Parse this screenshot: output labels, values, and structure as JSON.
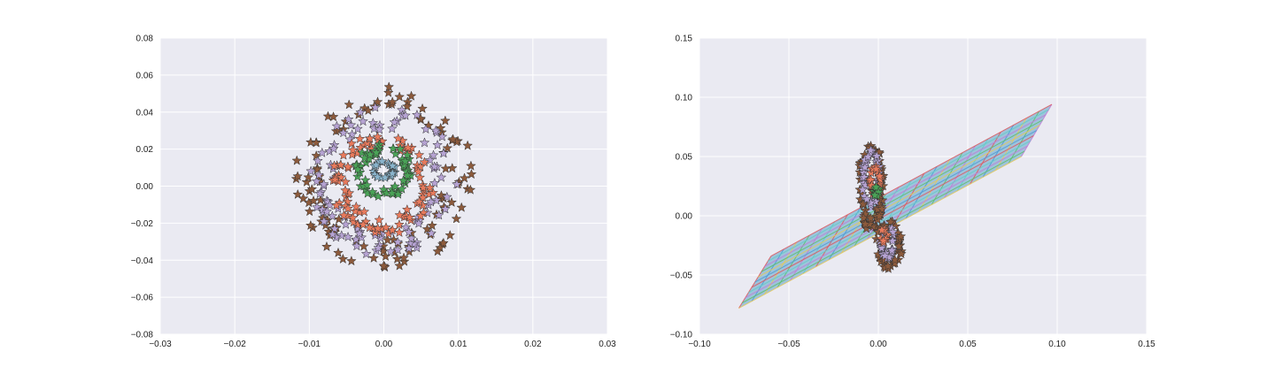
{
  "chart_data": [
    {
      "type": "scatter",
      "title": "",
      "xlabel": "",
      "ylabel": "",
      "xlim": [
        -0.03,
        0.03
      ],
      "ylim": [
        -0.08,
        0.08
      ],
      "x_ticks": [
        "−0.03",
        "−0.02",
        "−0.01",
        "0.00",
        "0.01",
        "0.02",
        "0.03"
      ],
      "y_ticks": [
        "0.08",
        "0.06",
        "0.04",
        "0.02",
        "0.00",
        "−0.02",
        "−0.04",
        "−0.06",
        "−0.08"
      ],
      "grid": true,
      "marker": "star",
      "series": [
        {
          "color": "#8c5a3c",
          "shape": "ellipse",
          "center": [
            0.0,
            0.005
          ],
          "rx": 0.0115,
          "ry": 0.048,
          "tilt_deg": -48,
          "n": 120
        },
        {
          "color": "#b6a3d3",
          "shape": "ellipse",
          "center": [
            0.0,
            0.003
          ],
          "rx": 0.0095,
          "ry": 0.039,
          "tilt_deg": -48,
          "n": 110
        },
        {
          "color": "#e87a5c",
          "shape": "ellipse",
          "center": [
            0.0,
            0.002
          ],
          "rx": 0.0068,
          "ry": 0.027,
          "tilt_deg": -48,
          "n": 100
        },
        {
          "color": "#4aa357",
          "shape": "ellipse",
          "center": [
            0.0,
            0.008
          ],
          "rx": 0.0038,
          "ry": 0.014,
          "tilt_deg": -30,
          "n": 70
        },
        {
          "color": "#8ab4cc",
          "shape": "ellipse",
          "center": [
            0.0,
            0.009
          ],
          "rx": 0.0015,
          "ry": 0.005,
          "tilt_deg": -30,
          "n": 30
        }
      ]
    },
    {
      "type": "scatter",
      "title": "",
      "xlabel": "",
      "ylabel": "",
      "xlim": [
        -0.1,
        0.15
      ],
      "ylim": [
        -0.1,
        0.15
      ],
      "x_ticks": [
        "−0.10",
        "−0.05",
        "0.00",
        "0.05",
        "0.10",
        "0.15"
      ],
      "y_ticks": [
        "0.15",
        "0.10",
        "0.05",
        "0.00",
        "−0.05",
        "−0.10"
      ],
      "grid": true,
      "marker": "star",
      "plane": {
        "corners": [
          [
            -0.078,
            -0.078
          ],
          [
            -0.06,
            -0.034
          ],
          [
            0.097,
            0.094
          ],
          [
            0.08,
            0.05
          ]
        ],
        "fill": "#5ea3c9",
        "line_colors": [
          "#e0555a",
          "#4a9bd6",
          "#e6c95a",
          "#5abf6b",
          "#c27ad6",
          "#5ecfc7"
        ]
      },
      "series": [
        {
          "color": "#8c5a3c",
          "shape": "ellipse",
          "center": [
            -0.004,
            0.025
          ],
          "rx": 0.007,
          "ry": 0.037,
          "n": 80
        },
        {
          "color": "#8c5a3c",
          "shape": "ellipse",
          "center": [
            0.006,
            -0.025
          ],
          "rx": 0.007,
          "ry": 0.02,
          "n": 45
        },
        {
          "color": "#b6a3d3",
          "shape": "ellipse",
          "center": [
            -0.004,
            0.032
          ],
          "rx": 0.005,
          "ry": 0.023,
          "n": 45
        },
        {
          "color": "#b6a3d3",
          "shape": "ellipse",
          "center": [
            0.005,
            -0.022
          ],
          "rx": 0.004,
          "ry": 0.014,
          "n": 30
        },
        {
          "color": "#e87a5c",
          "shape": "ellipse",
          "center": [
            -0.002,
            0.03
          ],
          "rx": 0.003,
          "ry": 0.012,
          "n": 25
        },
        {
          "color": "#e87a5c",
          "shape": "ellipse",
          "center": [
            0.003,
            -0.017
          ],
          "rx": 0.002,
          "ry": 0.006,
          "n": 12
        },
        {
          "color": "#4aa357",
          "shape": "ellipse",
          "center": [
            -0.001,
            0.02
          ],
          "rx": 0.0015,
          "ry": 0.004,
          "n": 14
        }
      ]
    }
  ]
}
